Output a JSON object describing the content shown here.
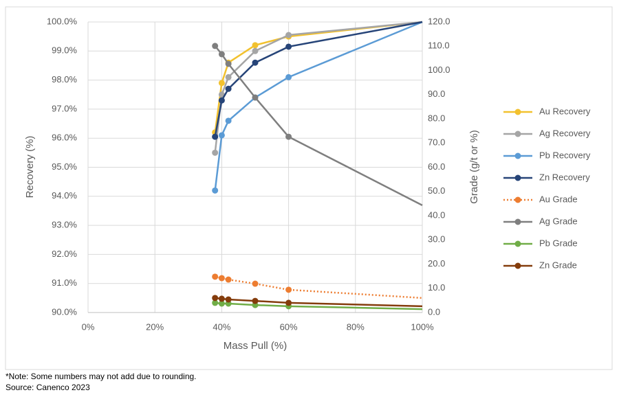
{
  "chart_data": {
    "type": "line",
    "x_label": "Mass Pull (%)",
    "y_label": "Recovery (%)",
    "y2_label": "Grade (g/t or %)",
    "x": [
      38,
      40,
      42,
      50,
      60,
      100
    ],
    "xlim": [
      0,
      100
    ],
    "xticks": [
      {
        "value": 0,
        "label": "0%"
      },
      {
        "value": 20,
        "label": "20%"
      },
      {
        "value": 40,
        "label": "40%"
      },
      {
        "value": 60,
        "label": "60%"
      },
      {
        "value": 80,
        "label": "80%"
      },
      {
        "value": 100,
        "label": "100%"
      }
    ],
    "ylim": [
      90,
      100
    ],
    "yticks": [
      {
        "value": 90,
        "label": "90.0%"
      },
      {
        "value": 91,
        "label": "91.0%"
      },
      {
        "value": 92,
        "label": "92.0%"
      },
      {
        "value": 93,
        "label": "93.0%"
      },
      {
        "value": 94,
        "label": "94.0%"
      },
      {
        "value": 95,
        "label": "95.0%"
      },
      {
        "value": 96,
        "label": "96.0%"
      },
      {
        "value": 97,
        "label": "97.0%"
      },
      {
        "value": 98,
        "label": "98.0%"
      },
      {
        "value": 99,
        "label": "99.0%"
      },
      {
        "value": 100,
        "label": "100.0%"
      }
    ],
    "y2lim": [
      0,
      120
    ],
    "y2ticks": [
      {
        "value": 0,
        "label": "0.0"
      },
      {
        "value": 10,
        "label": "10.0"
      },
      {
        "value": 20,
        "label": "20.0"
      },
      {
        "value": 30,
        "label": "30.0"
      },
      {
        "value": 40,
        "label": "40.0"
      },
      {
        "value": 50,
        "label": "50.0"
      },
      {
        "value": 60,
        "label": "60.0"
      },
      {
        "value": 70,
        "label": "70.0"
      },
      {
        "value": 80,
        "label": "80.0"
      },
      {
        "value": 90,
        "label": "90.0"
      },
      {
        "value": 100,
        "label": "100.0"
      },
      {
        "value": 110,
        "label": "110.0"
      },
      {
        "value": 120,
        "label": "120.0"
      }
    ],
    "grid": true,
    "legend": "right",
    "series": [
      {
        "name": "Au Recovery",
        "color": "#f2c12e",
        "values": [
          96.2,
          97.9,
          98.6,
          99.2,
          99.5,
          100.0
        ]
      },
      {
        "name": "Ag Recovery",
        "color": "#a5a5a5",
        "values": [
          95.5,
          97.5,
          98.1,
          99.0,
          99.55,
          100.0
        ]
      },
      {
        "name": "Pb Recovery",
        "color": "#5b9bd5",
        "values": [
          94.2,
          96.1,
          96.6,
          97.4,
          98.1,
          100.0
        ]
      },
      {
        "name": "Zn Recovery",
        "color": "#264478",
        "values": [
          96.05,
          97.3,
          97.7,
          98.6,
          99.15,
          100.0
        ]
      },
      {
        "name": "Au Grade",
        "color": "#ed7d31",
        "axis": "y2",
        "line_style": "dotted",
        "values": [
          14.8,
          14.2,
          13.6,
          11.9,
          9.4,
          6.0
        ]
      },
      {
        "name": "Ag Grade",
        "color": "#7f7f7f",
        "axis": "y2",
        "values": [
          110.1,
          106.7,
          102.7,
          88.8,
          72.6,
          44.3
        ]
      },
      {
        "name": "Pb Grade",
        "color": "#70ad47",
        "axis": "y2",
        "values": [
          4.0,
          3.7,
          3.7,
          3.1,
          2.6,
          1.4
        ]
      },
      {
        "name": "Zn Grade",
        "color": "#843c0c",
        "axis": "y2",
        "values": [
          6.0,
          5.7,
          5.4,
          4.8,
          4.0,
          2.6
        ]
      }
    ],
    "notes": [
      "*Note: Some numbers may not add due to rounding.",
      "Source: Canenco 2023"
    ]
  }
}
